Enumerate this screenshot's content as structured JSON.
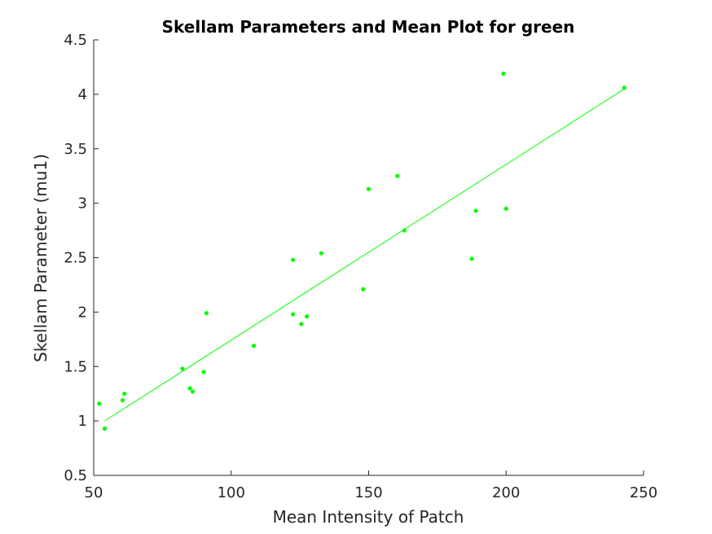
{
  "chart_data": {
    "type": "scatter",
    "title": "Skellam Parameters and Mean Plot for green",
    "xlabel": "Mean Intensity of Patch",
    "ylabel": "Skellam Parameter (mu1)",
    "xlim": [
      50,
      250
    ],
    "ylim": [
      0.5,
      4.5
    ],
    "xticks": [
      50,
      100,
      150,
      200,
      250
    ],
    "yticks": [
      0.5,
      1,
      1.5,
      2,
      2.5,
      3,
      3.5,
      4,
      4.5
    ],
    "xtick_labels": [
      "50",
      "100",
      "150",
      "200",
      "250"
    ],
    "ytick_labels": [
      "0.5",
      "1",
      "1.5",
      "2",
      "2.5",
      "3",
      "3.5",
      "4",
      "4.5"
    ],
    "grid": false,
    "color": "#00ff00",
    "points": [
      {
        "x": 52,
        "y": 1.16
      },
      {
        "x": 54,
        "y": 0.93
      },
      {
        "x": 60.5,
        "y": 1.19
      },
      {
        "x": 61.2,
        "y": 1.25
      },
      {
        "x": 82.3,
        "y": 1.48
      },
      {
        "x": 85,
        "y": 1.3
      },
      {
        "x": 86,
        "y": 1.27
      },
      {
        "x": 90,
        "y": 1.45
      },
      {
        "x": 91,
        "y": 1.99
      },
      {
        "x": 108.2,
        "y": 1.69
      },
      {
        "x": 122.5,
        "y": 2.48
      },
      {
        "x": 122.5,
        "y": 1.98
      },
      {
        "x": 125.5,
        "y": 1.89
      },
      {
        "x": 127.5,
        "y": 1.96
      },
      {
        "x": 132.8,
        "y": 2.54
      },
      {
        "x": 148,
        "y": 2.21
      },
      {
        "x": 150,
        "y": 3.13
      },
      {
        "x": 160.5,
        "y": 3.25
      },
      {
        "x": 163,
        "y": 2.75
      },
      {
        "x": 187.5,
        "y": 2.49
      },
      {
        "x": 189,
        "y": 2.93
      },
      {
        "x": 199,
        "y": 4.19
      },
      {
        "x": 200,
        "y": 2.95
      },
      {
        "x": 243,
        "y": 4.06
      }
    ],
    "fit_line": {
      "x": [
        54,
        243
      ],
      "y": [
        1.0,
        4.05
      ]
    }
  }
}
